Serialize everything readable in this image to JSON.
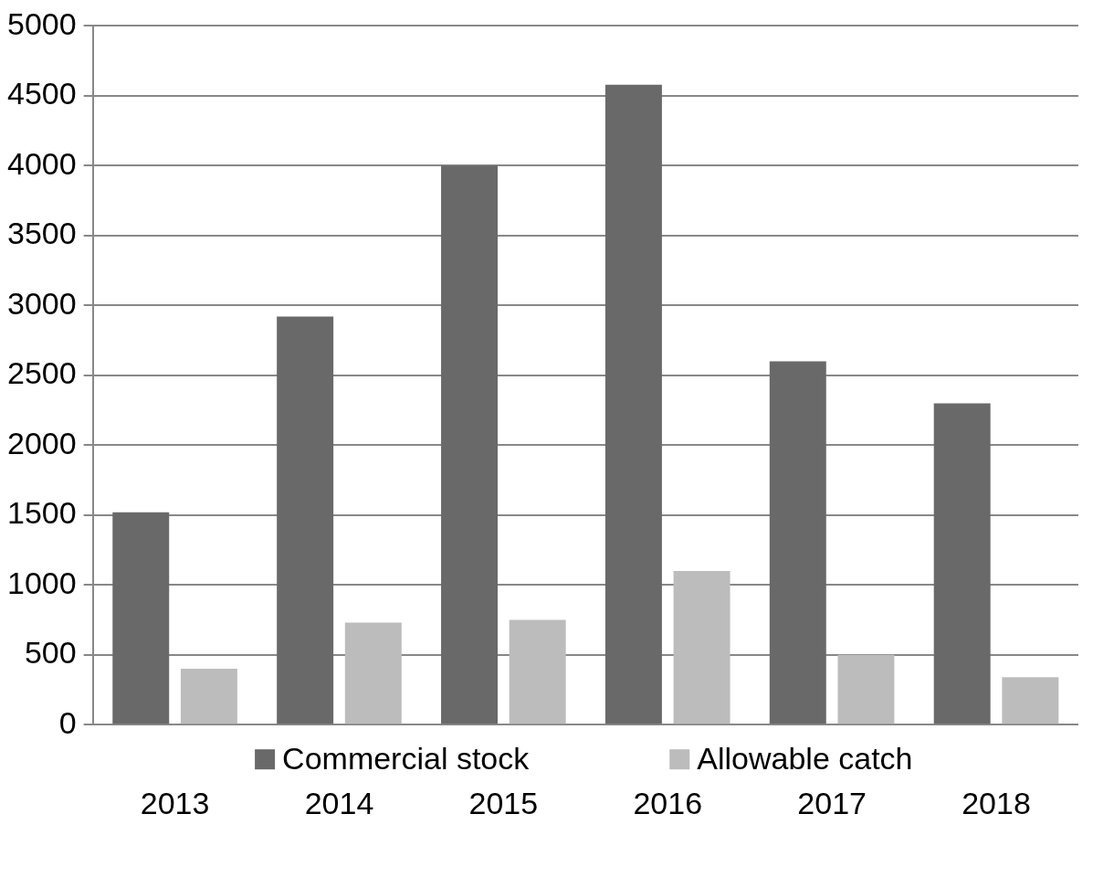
{
  "chart_data": {
    "type": "bar",
    "categories": [
      "2013",
      "2014",
      "2015",
      "2016",
      "2017",
      "2018"
    ],
    "series": [
      {
        "name": "Commercial stock",
        "color": "#696969",
        "values": [
          1520,
          2920,
          4000,
          4580,
          2600,
          2300
        ]
      },
      {
        "name": "Allowable catch",
        "color": "#bcbcbc",
        "values": [
          400,
          730,
          750,
          1100,
          500,
          340
        ]
      }
    ],
    "ylim": [
      0,
      5000
    ],
    "yticks": [
      0,
      500,
      1000,
      1500,
      2000,
      2500,
      3000,
      3500,
      4000,
      4500,
      5000
    ],
    "grid": "y",
    "legend": "bottom"
  }
}
